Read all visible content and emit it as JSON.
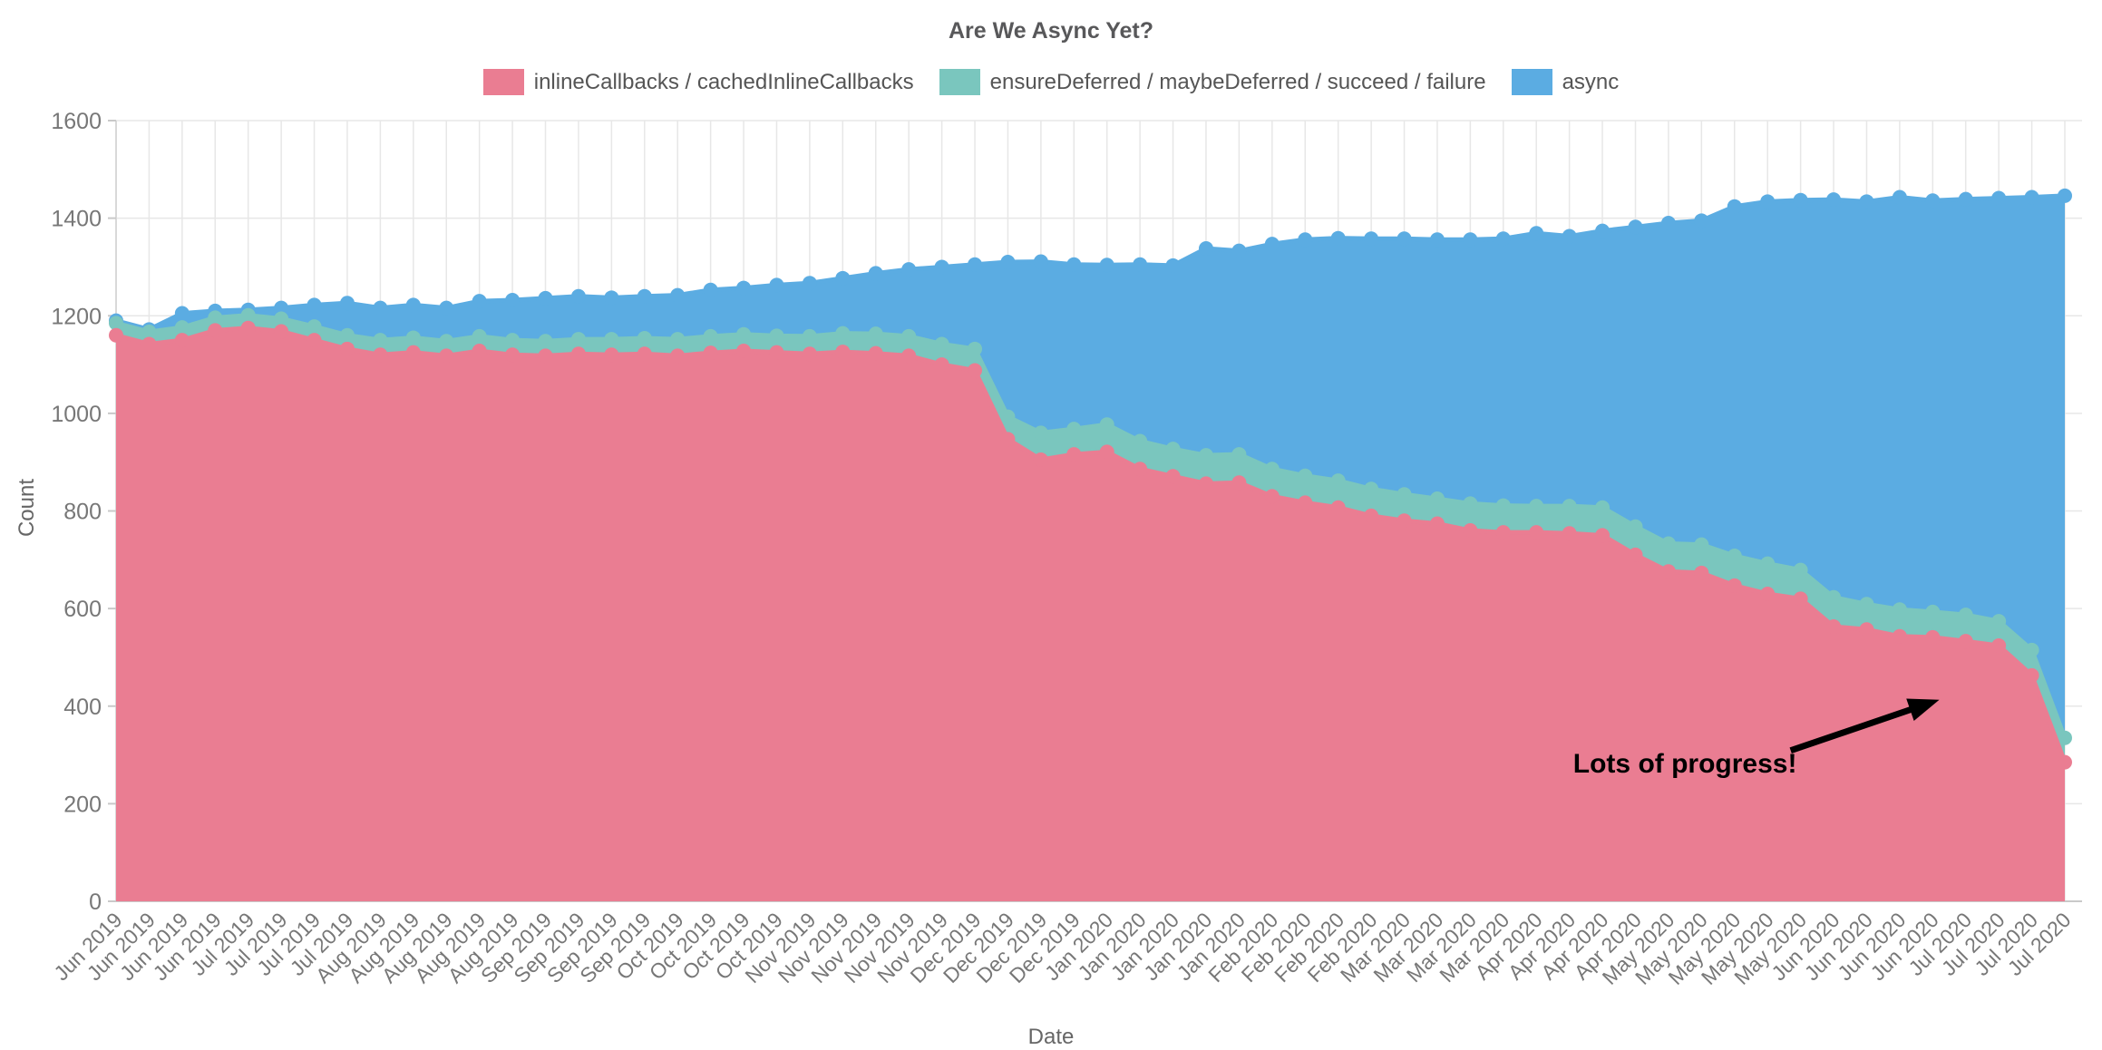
{
  "chart_data": {
    "type": "area",
    "stacked": true,
    "title": "Are We Async Yet?",
    "xlabel": "Date",
    "ylabel": "Count",
    "ylim": [
      0,
      1600
    ],
    "y_ticks": [
      0,
      200,
      400,
      600,
      800,
      1000,
      1200,
      1400,
      1600
    ],
    "grid": true,
    "legend_position": "top",
    "background": "#ffffff",
    "grid_color": "#e7e7e7",
    "axis_color": "#c9c9c9",
    "tick_label_color": "#777777",
    "categories": [
      "Jun 2019",
      "Jun 2019",
      "Jun 2019",
      "Jun 2019",
      "Jul 2019",
      "Jul 2019",
      "Jul 2019",
      "Jul 2019",
      "Aug 2019",
      "Aug 2019",
      "Aug 2019",
      "Aug 2019",
      "Aug 2019",
      "Sep 2019",
      "Sep 2019",
      "Sep 2019",
      "Sep 2019",
      "Oct 2019",
      "Oct 2019",
      "Oct 2019",
      "Oct 2019",
      "Nov 2019",
      "Nov 2019",
      "Nov 2019",
      "Nov 2019",
      "Nov 2019",
      "Dec 2019",
      "Dec 2019",
      "Dec 2019",
      "Dec 2019",
      "Jan 2020",
      "Jan 2020",
      "Jan 2020",
      "Jan 2020",
      "Jan 2020",
      "Feb 2020",
      "Feb 2020",
      "Feb 2020",
      "Feb 2020",
      "Mar 2020",
      "Mar 2020",
      "Mar 2020",
      "Mar 2020",
      "Apr 2020",
      "Apr 2020",
      "Apr 2020",
      "Apr 2020",
      "May 2020",
      "May 2020",
      "May 2020",
      "May 2020",
      "May 2020",
      "Jun 2020",
      "Jun 2020",
      "Jun 2020",
      "Jun 2020",
      "Jul 2020",
      "Jul 2020",
      "Jul 2020",
      "Jul 2020"
    ],
    "series": [
      {
        "name": "inlineCallbacks / cachedInlineCallbacks",
        "color": "#ea7d92",
        "values": [
          1160,
          1142,
          1150,
          1170,
          1175,
          1168,
          1150,
          1132,
          1120,
          1125,
          1118,
          1128,
          1120,
          1118,
          1122,
          1120,
          1122,
          1118,
          1124,
          1128,
          1125,
          1122,
          1126,
          1123,
          1118,
          1100,
          1088,
          947,
          905,
          916,
          921,
          886,
          871,
          856,
          858,
          830,
          817,
          807,
          790,
          780,
          774,
          760,
          756,
          756,
          754,
          750,
          710,
          676,
          673,
          647,
          630,
          620,
          563,
          557,
          543,
          541,
          533,
          524,
          463,
          285
        ]
      },
      {
        "name": "ensureDeferred / maybeDeferred / succeed / failure",
        "color": "#7ac6be",
        "values": [
          25,
          25,
          26,
          26,
          26,
          26,
          28,
          28,
          30,
          30,
          30,
          30,
          30,
          30,
          30,
          32,
          32,
          34,
          34,
          34,
          34,
          36,
          38,
          40,
          40,
          42,
          44,
          46,
          55,
          52,
          56,
          57,
          56,
          58,
          58,
          56,
          55,
          55,
          55,
          54,
          51,
          55,
          55,
          54,
          56,
          57,
          58,
          57,
          58,
          61,
          62,
          59,
          60,
          52,
          55,
          52,
          54,
          50,
          52,
          50
        ]
      },
      {
        "name": "async",
        "color": "#5bace2",
        "values": [
          5,
          5,
          29,
          14,
          11,
          22,
          44,
          66,
          66,
          67,
          68,
          72,
          82,
          88,
          88,
          85,
          86,
          90,
          95,
          95,
          104,
          109,
          113,
          124,
          137,
          158,
          173,
          317,
          351,
          337,
          327,
          362,
          376,
          424,
          417,
          461,
          484,
          497,
          513,
          524,
          531,
          541,
          547,
          559,
          553,
          567,
          614,
          657,
          664,
          716,
          742,
          758,
          815,
          825,
          845,
          843,
          852,
          867,
          928,
          1111
        ]
      }
    ],
    "annotation": {
      "text": "Lots of progress!",
      "color": "#000000",
      "text_at": {
        "index": 47.5,
        "value": 264
      },
      "arrow_from": {
        "index": 50.7,
        "value": 309
      },
      "arrow_to": {
        "index": 55.2,
        "value": 413
      }
    }
  }
}
